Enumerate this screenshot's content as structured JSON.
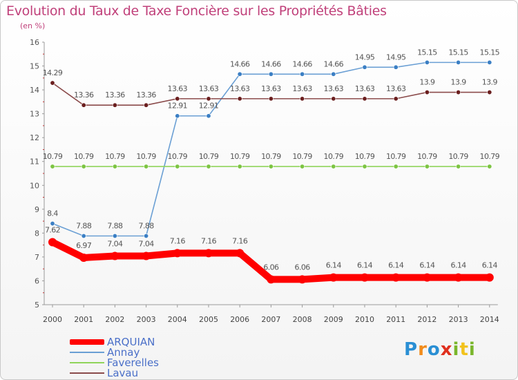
{
  "title": "Evolution du Taux de Taxe Foncière sur les Propriétés Bâties",
  "unit_label": "(en %)",
  "logo": {
    "text": "Proxiti",
    "letters": [
      "P",
      "r",
      "o",
      "x",
      "i",
      "t",
      "i"
    ],
    "colors": [
      "#2a8fd4",
      "#f28c1c",
      "#2a8fd4",
      "#e0301e",
      "#7ab62c",
      "#f2c21c",
      "#7ab62c"
    ]
  },
  "chart_data": {
    "type": "line",
    "title": "Evolution du Taux de Taxe Foncière sur les Propriétés Bâties",
    "ylabel": "(en %)",
    "xlabel": "",
    "ylim": [
      5,
      16
    ],
    "yticks": [
      "5",
      "6",
      "7",
      "8",
      "9",
      "10",
      "11",
      "12",
      "13",
      "14",
      "15",
      "16"
    ],
    "categories": [
      "2000",
      "2001",
      "2002",
      "2003",
      "2004",
      "2005",
      "2006",
      "2007",
      "2008",
      "2009",
      "2010",
      "2011",
      "2012",
      "2013",
      "2014"
    ],
    "grid": false,
    "series": [
      {
        "name": "ARQUIAN",
        "color": "#ff0000",
        "style": "thick",
        "values": [
          7.62,
          6.97,
          7.04,
          7.04,
          7.16,
          7.16,
          7.16,
          6.06,
          6.06,
          6.14,
          6.14,
          6.14,
          6.14,
          6.14,
          6.14
        ],
        "labels": [
          "7.62",
          "6.97",
          "7.04",
          "7.04",
          "7.16",
          "7.16",
          "7.16",
          "6.06",
          "6.06",
          "6.14",
          "6.14",
          "6.14",
          "6.14",
          "6.14",
          "6.14"
        ]
      },
      {
        "name": "Annay",
        "color": "#6a9fd4",
        "marker": "#3b7fc4",
        "values": [
          8.4,
          7.88,
          7.88,
          7.88,
          12.91,
          12.91,
          14.66,
          14.66,
          14.66,
          14.66,
          14.95,
          14.95,
          15.15,
          15.15,
          15.15
        ],
        "labels": [
          "8.4",
          "7.88",
          "7.88",
          "7.88",
          "12.91",
          "12.91",
          "14.66",
          "14.66",
          "14.66",
          "14.66",
          "14.95",
          "14.95",
          "15.15",
          "15.15",
          "15.15"
        ]
      },
      {
        "name": "Faverelles",
        "color": "#8fd45a",
        "marker": "#7cc442",
        "values": [
          10.79,
          10.79,
          10.79,
          10.79,
          10.79,
          10.79,
          10.79,
          10.79,
          10.79,
          10.79,
          10.79,
          10.79,
          10.79,
          10.79,
          10.79
        ],
        "labels": [
          "10.79",
          "10.79",
          "10.79",
          "10.79",
          "10.79",
          "10.79",
          "10.79",
          "10.79",
          "10.79",
          "10.79",
          "10.79",
          "10.79",
          "10.79",
          "10.79",
          "10.79"
        ]
      },
      {
        "name": "Lavau",
        "color": "#8a4a4a",
        "marker": "#6b1f1f",
        "values": [
          14.29,
          13.36,
          13.36,
          13.36,
          13.63,
          13.63,
          13.63,
          13.63,
          13.63,
          13.63,
          13.63,
          13.63,
          13.9,
          13.9,
          13.9
        ],
        "labels": [
          "14.29",
          "13.36",
          "13.36",
          "13.36",
          "13.63",
          "13.63",
          "13.63",
          "13.63",
          "13.63",
          "13.63",
          "13.63",
          "13.63",
          "13.9",
          "13.9",
          "13.9"
        ]
      }
    ],
    "legend_position": "bottom-left"
  }
}
